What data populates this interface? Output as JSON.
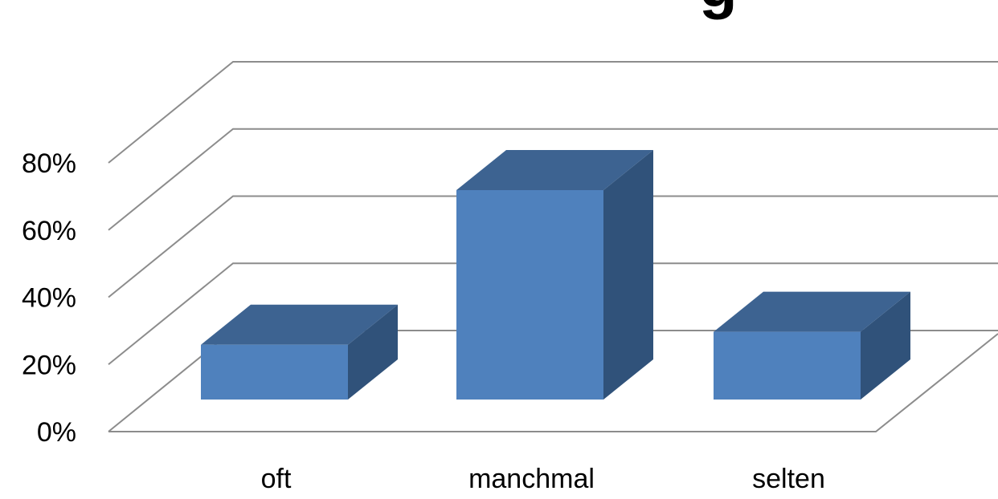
{
  "chart_data": {
    "type": "bar",
    "title_fragment": "g",
    "categories": [
      "oft",
      "manchmal",
      "selten"
    ],
    "values": [
      17,
      65,
      21
    ],
    "ylim": [
      0,
      80
    ],
    "yticks": [
      "0%",
      "20%",
      "40%",
      "60%",
      "80%"
    ],
    "grid": true,
    "style": "3d-column",
    "colors": {
      "front": "#4f81bd",
      "top": "#3d6391",
      "side": "#30527a",
      "grid": "#8c8c8c"
    }
  }
}
